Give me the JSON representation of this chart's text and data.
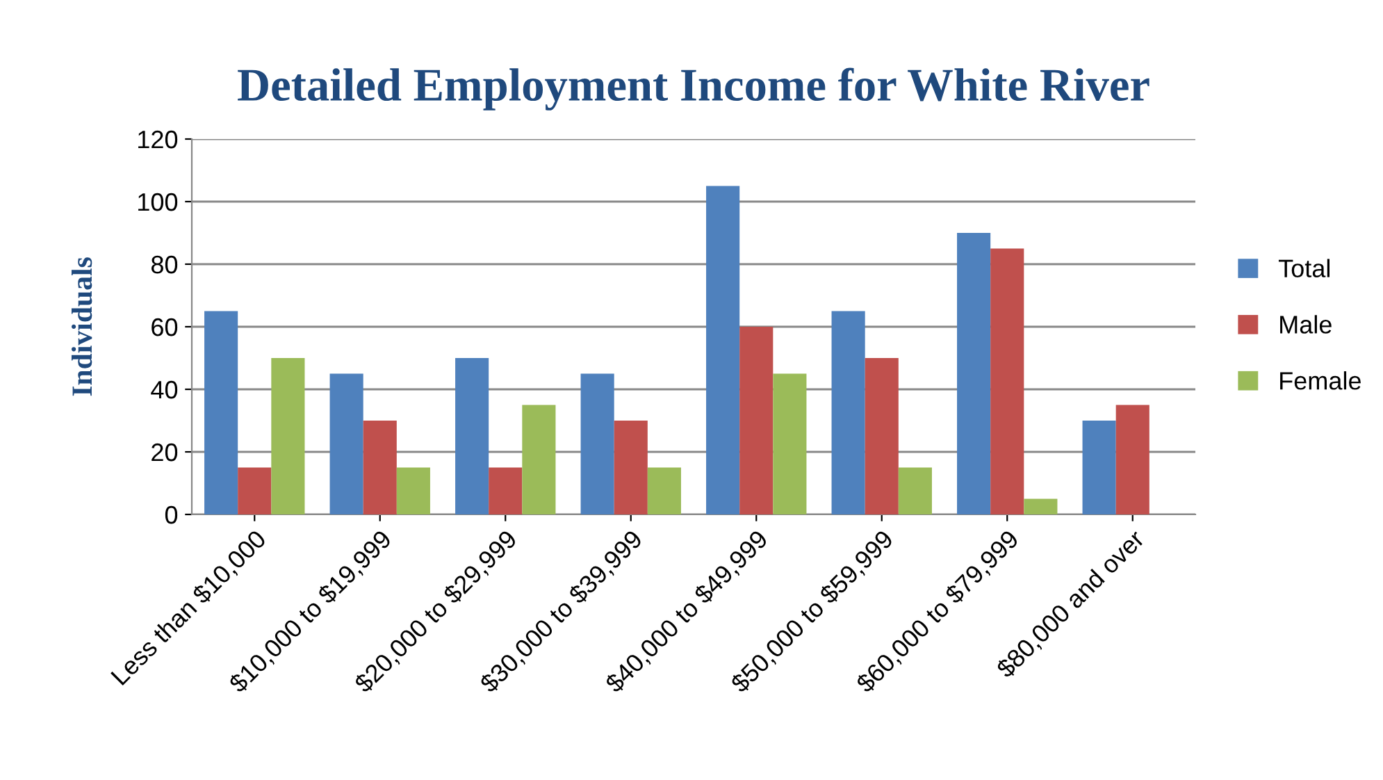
{
  "chart_data": {
    "type": "bar",
    "title": "Detailed Employment Income for White River",
    "ylabel": "Individuals",
    "categories": [
      "Less than $10,000",
      "$10,000 to $19,999",
      "$20,000 to $29,999",
      "$30,000 to $39,999",
      "$40,000 to $49,999",
      "$50,000 to $59,999",
      "$60,000 to $79,999",
      "$80,000 and over"
    ],
    "series": [
      {
        "name": "Total",
        "color": "#4f81bd",
        "values": [
          65,
          45,
          50,
          45,
          105,
          65,
          90,
          30
        ]
      },
      {
        "name": "Male",
        "color": "#c0504d",
        "values": [
          15,
          30,
          15,
          30,
          60,
          50,
          85,
          35
        ]
      },
      {
        "name": "Female",
        "color": "#9bbb59",
        "values": [
          50,
          15,
          35,
          15,
          45,
          15,
          5,
          0
        ]
      }
    ],
    "ylim": [
      0,
      120
    ],
    "yticks": [
      0,
      20,
      40,
      60,
      80,
      100,
      120
    ],
    "grid": "y",
    "legend": "right"
  }
}
